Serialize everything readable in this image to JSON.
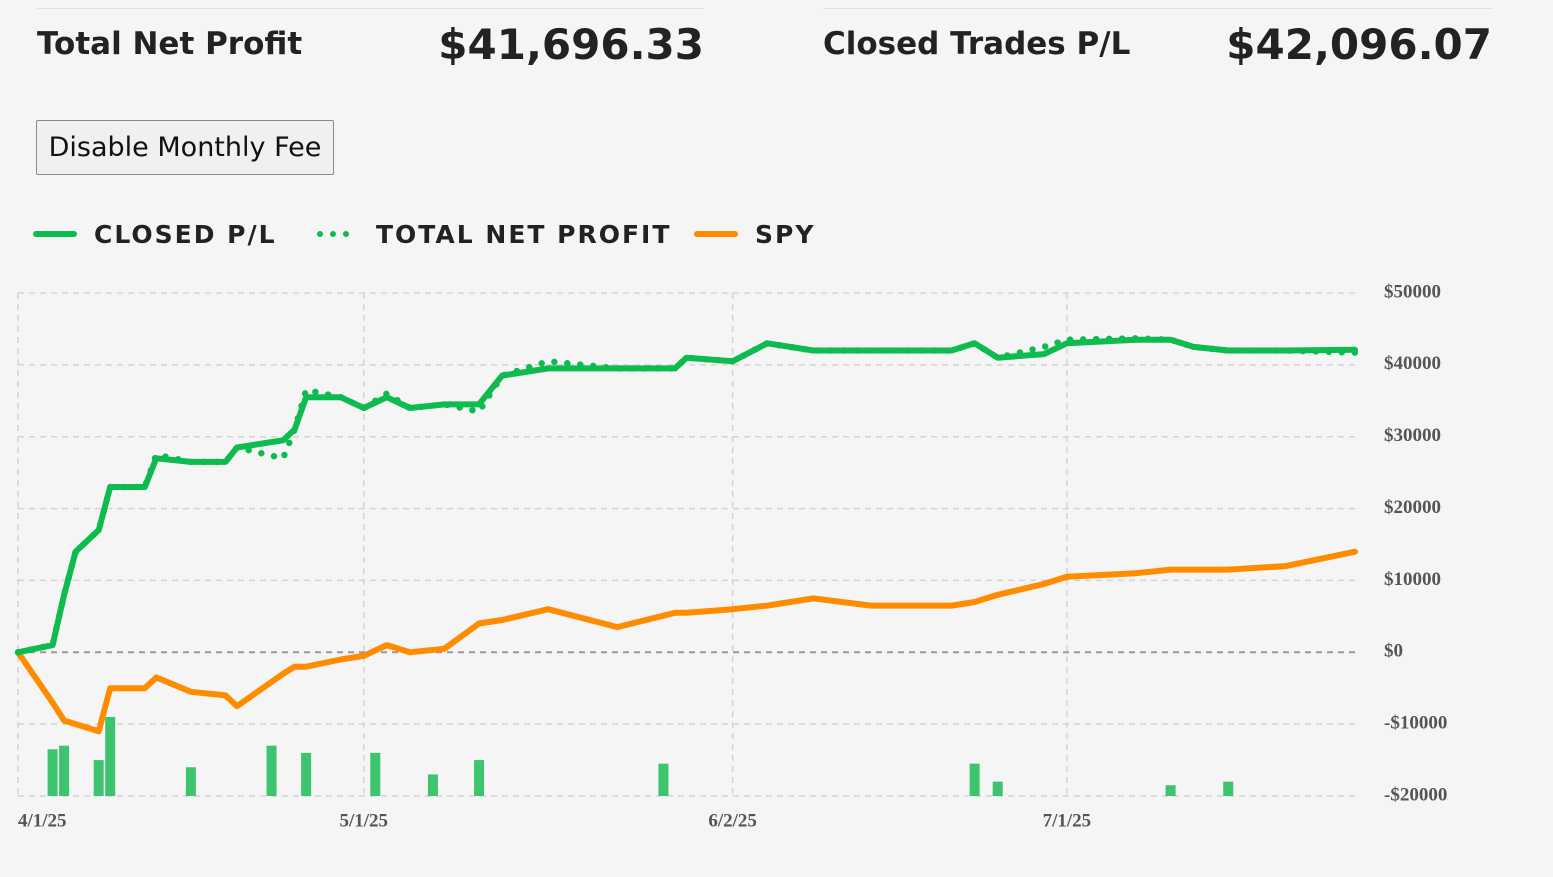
{
  "stats": [
    {
      "label": "Total Net Profit",
      "value": "$41,696.33"
    },
    {
      "label": "Closed Trades P/L",
      "value": "$42,096.07"
    }
  ],
  "button": "Disable Monthly Fee",
  "chart_data": {
    "type": "line",
    "x": [
      "4/1/25",
      "4/4/25",
      "4/5/25",
      "4/6/25",
      "4/8/25",
      "4/9/25",
      "4/12/25",
      "4/13/25",
      "4/16/25",
      "4/19/25",
      "4/20/25",
      "4/24/25",
      "4/25/25",
      "4/26/25",
      "4/29/25",
      "5/1/25",
      "5/3/25",
      "5/5/25",
      "5/8/25",
      "5/11/25",
      "5/13/25",
      "5/17/25",
      "5/23/25",
      "5/28/25",
      "5/29/25",
      "6/2/25",
      "6/5/25",
      "6/9/25",
      "6/14/25",
      "6/21/25",
      "6/23/25",
      "6/25/25",
      "6/29/25",
      "7/1/25",
      "7/7/25",
      "7/10/25",
      "7/12/25",
      "7/15/25",
      "7/20/25",
      "7/26/25"
    ],
    "xlim": [
      "4/1/25",
      "7/26/25"
    ],
    "xticks": [
      "4/1/25",
      "5/1/25",
      "6/2/25",
      "7/1/25"
    ],
    "ylim": [
      -20000,
      50000
    ],
    "yticks": [
      {
        "value": 50000,
        "label": "$50000"
      },
      {
        "value": 40000,
        "label": "$40000"
      },
      {
        "value": 30000,
        "label": "$30000"
      },
      {
        "value": 20000,
        "label": "$20000"
      },
      {
        "value": 10000,
        "label": "$10000"
      },
      {
        "value": 0,
        "label": "$0"
      },
      {
        "value": -10000,
        "label": "-$10000"
      },
      {
        "value": -20000,
        "label": "-$20000"
      }
    ],
    "grid": true,
    "series": [
      {
        "name": "CLOSED P/L",
        "color": "#0dbb4f",
        "style": "solid",
        "values": [
          0,
          1000,
          8000,
          14000,
          17000,
          23000,
          23000,
          27000,
          26500,
          26500,
          28500,
          29500,
          31000,
          35500,
          35500,
          34000,
          35500,
          34000,
          34500,
          34500,
          38500,
          39500,
          39500,
          39500,
          41000,
          40500,
          43000,
          42000,
          42000,
          42000,
          43000,
          41000,
          41500,
          43000,
          43500,
          43500,
          42500,
          42000,
          42000,
          42100
        ]
      },
      {
        "name": "TOTAL NET PROFIT",
        "color": "#0dbb4f",
        "style": "dotted",
        "values": [
          0,
          1000,
          8000,
          14000,
          17000,
          23000,
          23000,
          27500,
          26500,
          26500,
          28500,
          27000,
          31000,
          36500,
          35500,
          34000,
          36000,
          34000,
          34500,
          33500,
          38500,
          40500,
          39500,
          39500,
          41000,
          40500,
          43000,
          42000,
          42000,
          42000,
          43000,
          41000,
          42500,
          43500,
          43700,
          43500,
          42500,
          42000,
          42000,
          41700
        ]
      },
      {
        "name": "SPY",
        "color": "#ff8c00",
        "style": "solid",
        "values": [
          0,
          -7000,
          -9500,
          -10000,
          -11000,
          -5000,
          -5000,
          -3500,
          -5500,
          -6000,
          -7500,
          -3000,
          -2000,
          -2000,
          -1000,
          -500,
          1000,
          0,
          500,
          4000,
          4500,
          6000,
          3500,
          5500,
          5500,
          6000,
          6500,
          7500,
          6500,
          6500,
          7000,
          8000,
          9500,
          10500,
          11000,
          11500,
          11500,
          11500,
          12000,
          14000
        ]
      }
    ],
    "volume": {
      "color": "#3cc46e",
      "x": [
        "4/4/25",
        "4/5/25",
        "4/8/25",
        "4/9/25",
        "4/16/25",
        "4/23/25",
        "4/26/25",
        "5/2/25",
        "5/7/25",
        "5/11/25",
        "5/27/25",
        "6/23/25",
        "6/25/25",
        "7/10/25",
        "7/15/25"
      ],
      "values": [
        -13500,
        -13000,
        -15000,
        -9000,
        -16000,
        -13000,
        -14000,
        -14000,
        -17000,
        -15000,
        -15500,
        -15500,
        -18000,
        -18500,
        -18000
      ]
    }
  }
}
